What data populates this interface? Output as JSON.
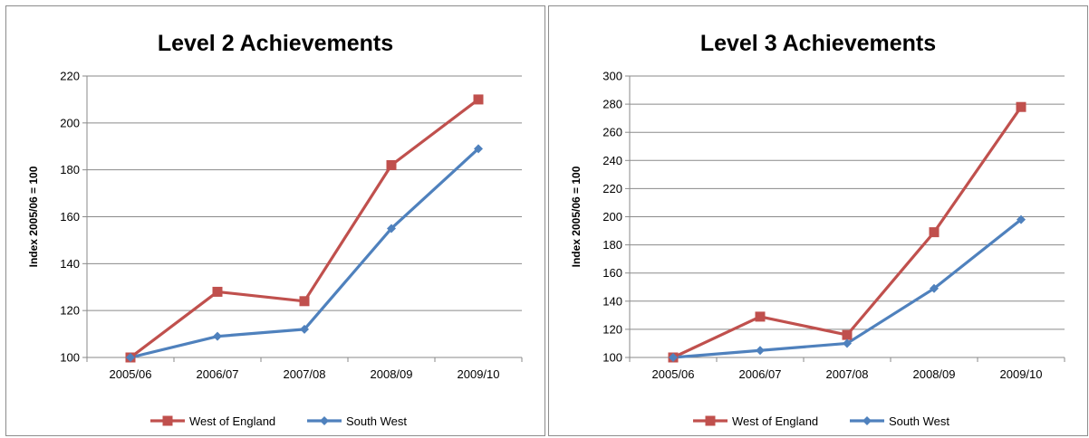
{
  "chart_data": [
    {
      "type": "line",
      "title": "Level 2 Achievements",
      "xlabel": "",
      "ylabel": "Index 2005/06 = 100",
      "categories": [
        "2005/06",
        "2006/07",
        "2007/08",
        "2008/09",
        "2009/10"
      ],
      "ylim": [
        100,
        220
      ],
      "ystep": 20,
      "grid": true,
      "legend": "bottom",
      "series": [
        {
          "name": "West of England",
          "values": [
            100,
            128,
            124,
            182,
            210
          ],
          "color": "#c0504d",
          "marker": "square"
        },
        {
          "name": "South West",
          "values": [
            100,
            109,
            112,
            155,
            189
          ],
          "color": "#4f81bd",
          "marker": "diamond"
        }
      ]
    },
    {
      "type": "line",
      "title": "Level 3 Achievements",
      "xlabel": "",
      "ylabel": "Index 2005/06 = 100",
      "categories": [
        "2005/06",
        "2006/07",
        "2007/08",
        "2008/09",
        "2009/10"
      ],
      "ylim": [
        100,
        300
      ],
      "ystep": 20,
      "grid": true,
      "legend": "bottom",
      "series": [
        {
          "name": "West of England",
          "values": [
            100,
            129,
            116,
            189,
            278
          ],
          "color": "#c0504d",
          "marker": "square"
        },
        {
          "name": "South West",
          "values": [
            100,
            105,
            110,
            149,
            198
          ],
          "color": "#4f81bd",
          "marker": "diamond"
        }
      ]
    }
  ]
}
